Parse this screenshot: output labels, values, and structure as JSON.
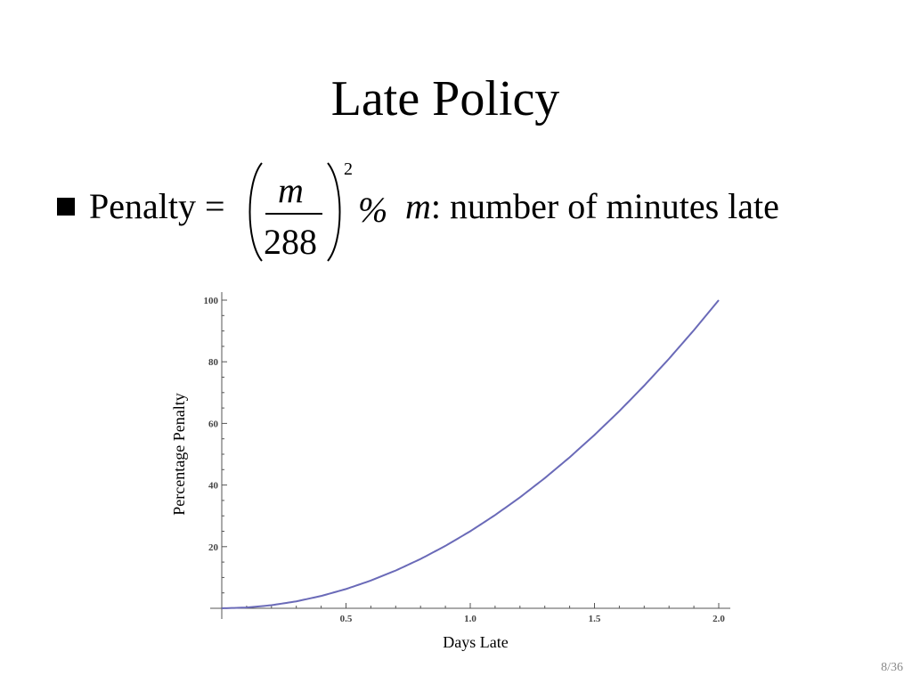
{
  "slide": {
    "title": "Late Policy",
    "page_number": "8/36"
  },
  "formula": {
    "lead": "Penalty =",
    "numerator": "m",
    "denominator": "288",
    "exponent": "2",
    "percent": "%",
    "variable": "m",
    "description": ": number of minutes late"
  },
  "chart_data": {
    "type": "line",
    "xlabel": "Days Late",
    "ylabel": "Percentage Penalty",
    "xlim": [
      0,
      2.0
    ],
    "ylim": [
      0,
      100
    ],
    "x_ticks": [
      "0.5",
      "1.0",
      "1.5",
      "2.0"
    ],
    "y_ticks": [
      "20",
      "40",
      "60",
      "80",
      "100"
    ],
    "grid": false,
    "line_color": "#6a6ab8",
    "series": [
      {
        "x": [
          0,
          0.1,
          0.2,
          0.3,
          0.4,
          0.5,
          0.6,
          0.7,
          0.8,
          0.9,
          1.0,
          1.1,
          1.2,
          1.3,
          1.4,
          1.5,
          1.6,
          1.7,
          1.8,
          1.9,
          2.0
        ],
        "y": [
          0,
          0.25,
          1,
          2.25,
          4,
          6.25,
          9,
          12.25,
          16,
          20.25,
          25,
          30.25,
          36,
          42.25,
          49,
          56.25,
          64,
          72.25,
          81,
          90.25,
          100
        ]
      }
    ]
  }
}
